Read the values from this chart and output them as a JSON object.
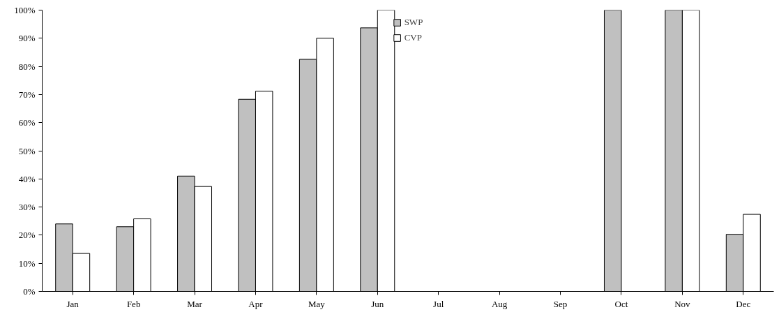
{
  "chart_data": {
    "type": "bar",
    "categories": [
      "Jan",
      "Feb",
      "Mar",
      "Apr",
      "May",
      "Jun",
      "Jul",
      "Aug",
      "Sep",
      "Oct",
      "Nov",
      "Dec"
    ],
    "series": [
      {
        "name": "SWP",
        "color": "#c0c0c0",
        "values": [
          24,
          23,
          41,
          68.3,
          82.5,
          93.7,
          null,
          null,
          null,
          100,
          100,
          20.3
        ]
      },
      {
        "name": "CVP",
        "color": "#ffffff",
        "values": [
          13.5,
          25.8,
          37.3,
          71.2,
          90,
          100,
          null,
          null,
          null,
          null,
          100,
          27.4
        ]
      }
    ],
    "ylim": [
      0,
      100
    ],
    "yticks": [
      {
        "value": 0,
        "label": "0%"
      },
      {
        "value": 10,
        "label": "10%"
      },
      {
        "value": 20,
        "label": "20%"
      },
      {
        "value": 30,
        "label": "30%"
      },
      {
        "value": 40,
        "label": "40%"
      },
      {
        "value": 50,
        "label": "50%"
      },
      {
        "value": 60,
        "label": "60%"
      },
      {
        "value": 70,
        "label": "70%"
      },
      {
        "value": 80,
        "label": "80%"
      },
      {
        "value": 90,
        "label": "90%"
      },
      {
        "value": 100,
        "label": "100%"
      }
    ],
    "grid": false,
    "legend": "top"
  }
}
